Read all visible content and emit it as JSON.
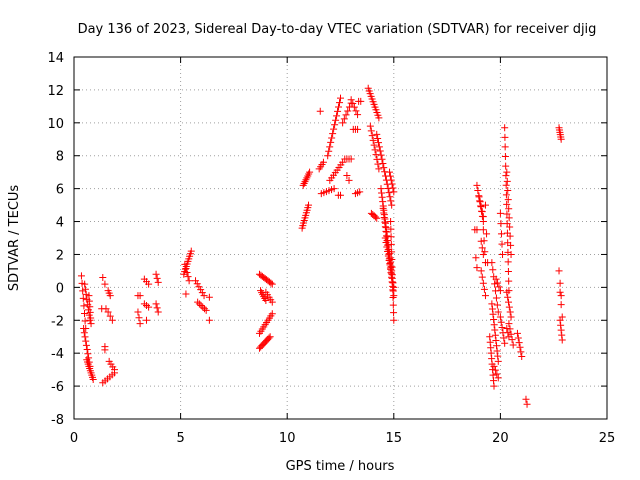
{
  "chart_data": {
    "type": "scatter",
    "title": "Day 136 of 2023, Sidereal Day-to-day VTEC variation (SDTVAR) for receiver djig",
    "xlabel": "GPS time / hours",
    "ylabel": "SDTVAR / TECUs",
    "xlim": [
      0,
      25
    ],
    "ylim": [
      -8,
      14
    ],
    "xticks": [
      0,
      5,
      10,
      15,
      20,
      25
    ],
    "yticks": [
      -8,
      -6,
      -4,
      -2,
      0,
      2,
      4,
      6,
      8,
      10,
      12,
      14
    ],
    "grid": true,
    "marker": "plus",
    "color": "#ff0000",
    "segments": [
      {
        "t0": 0.35,
        "t1": 0.55,
        "v0": 0.7,
        "v1": -2.5,
        "n": 8
      },
      {
        "t0": 0.45,
        "t1": 0.75,
        "v0": -2.5,
        "v1": -4.8,
        "n": 10
      },
      {
        "t0": 0.6,
        "t1": 0.9,
        "v0": -4.4,
        "v1": -5.6,
        "n": 10
      },
      {
        "t0": 0.5,
        "t1": 0.75,
        "v0": 0.2,
        "v1": -2.0,
        "n": 8
      },
      {
        "t0": 0.7,
        "t1": 0.8,
        "v0": -0.5,
        "v1": -2.2,
        "n": 6
      },
      {
        "t0": 1.35,
        "t1": 1.45,
        "v0": 0.6,
        "v1": 0.2,
        "n": 2
      },
      {
        "t0": 1.3,
        "t1": 1.5,
        "v0": -1.3,
        "v1": -1.3,
        "n": 2
      },
      {
        "t0": 1.45,
        "t1": 1.45,
        "v0": -3.6,
        "v1": -3.8,
        "n": 2
      },
      {
        "t0": 1.35,
        "t1": 1.9,
        "v0": -5.8,
        "v1": -5.2,
        "n": 6
      },
      {
        "t0": 1.65,
        "t1": 1.9,
        "v0": -4.5,
        "v1": -5.0,
        "n": 4
      },
      {
        "t0": 1.6,
        "t1": 1.7,
        "v0": -0.2,
        "v1": -0.5,
        "n": 3
      },
      {
        "t0": 1.6,
        "t1": 1.8,
        "v0": -1.5,
        "v1": -2.0,
        "n": 3
      },
      {
        "t0": 3.0,
        "t1": 3.1,
        "v0": -0.5,
        "v1": -0.5,
        "n": 2
      },
      {
        "t0": 3.0,
        "t1": 3.1,
        "v0": -1.5,
        "v1": -2.2,
        "n": 3
      },
      {
        "t0": 3.3,
        "t1": 3.5,
        "v0": 0.5,
        "v1": 0.2,
        "n": 3
      },
      {
        "t0": 3.3,
        "t1": 3.5,
        "v0": -1.0,
        "v1": -1.2,
        "n": 3
      },
      {
        "t0": 3.4,
        "t1": 3.4,
        "v0": -2.0,
        "v1": -2.0,
        "n": 1
      },
      {
        "t0": 3.85,
        "t1": 3.95,
        "v0": 0.8,
        "v1": 0.3,
        "n": 3
      },
      {
        "t0": 3.85,
        "t1": 3.95,
        "v0": -1.0,
        "v1": -1.5,
        "n": 3
      },
      {
        "t0": 5.15,
        "t1": 5.5,
        "v0": 0.8,
        "v1": 2.2,
        "n": 10
      },
      {
        "t0": 5.2,
        "t1": 5.4,
        "v0": 1.4,
        "v1": 0.4,
        "n": 5
      },
      {
        "t0": 5.25,
        "t1": 5.25,
        "v0": -0.4,
        "v1": -0.4,
        "n": 1
      },
      {
        "t0": 5.7,
        "t1": 6.1,
        "v0": 0.4,
        "v1": -0.5,
        "n": 6
      },
      {
        "t0": 5.8,
        "t1": 6.2,
        "v0": -0.9,
        "v1": -1.4,
        "n": 6
      },
      {
        "t0": 6.35,
        "t1": 6.45,
        "v0": -0.6,
        "v1": -0.6,
        "n": 1
      },
      {
        "t0": 6.35,
        "t1": 6.45,
        "v0": -2.0,
        "v1": -2.0,
        "n": 1
      },
      {
        "t0": 8.7,
        "t1": 9.3,
        "v0": 0.8,
        "v1": 0.2,
        "n": 10
      },
      {
        "t0": 8.75,
        "t1": 9.0,
        "v0": -0.2,
        "v1": -0.8,
        "n": 6
      },
      {
        "t0": 9.0,
        "t1": 9.3,
        "v0": -0.3,
        "v1": -0.9,
        "n": 5
      },
      {
        "t0": 8.7,
        "t1": 9.3,
        "v0": -2.8,
        "v1": -1.6,
        "n": 10
      },
      {
        "t0": 8.7,
        "t1": 9.2,
        "v0": -3.7,
        "v1": -3.0,
        "n": 10
      },
      {
        "t0": 10.7,
        "t1": 11.0,
        "v0": 3.6,
        "v1": 5.0,
        "n": 10
      },
      {
        "t0": 10.75,
        "t1": 11.05,
        "v0": 6.2,
        "v1": 7.0,
        "n": 8
      },
      {
        "t0": 11.55,
        "t1": 11.55,
        "v0": 10.7,
        "v1": 10.7,
        "n": 1
      },
      {
        "t0": 11.5,
        "t1": 11.7,
        "v0": 7.2,
        "v1": 7.6,
        "n": 4
      },
      {
        "t0": 11.6,
        "t1": 12.2,
        "v0": 5.7,
        "v1": 6.0,
        "n": 6
      },
      {
        "t0": 11.9,
        "t1": 12.5,
        "v0": 8.0,
        "v1": 11.5,
        "n": 14
      },
      {
        "t0": 12.0,
        "t1": 12.6,
        "v0": 6.5,
        "v1": 7.6,
        "n": 8
      },
      {
        "t0": 12.4,
        "t1": 12.5,
        "v0": 5.6,
        "v1": 5.6,
        "n": 2
      },
      {
        "t0": 12.6,
        "t1": 13.0,
        "v0": 10.0,
        "v1": 11.2,
        "n": 6
      },
      {
        "t0": 12.7,
        "t1": 13.0,
        "v0": 7.8,
        "v1": 7.8,
        "n": 4
      },
      {
        "t0": 12.8,
        "t1": 12.9,
        "v0": 6.8,
        "v1": 6.5,
        "n": 2
      },
      {
        "t0": 13.0,
        "t1": 13.3,
        "v0": 11.4,
        "v1": 10.5,
        "n": 5
      },
      {
        "t0": 13.1,
        "t1": 13.3,
        "v0": 9.6,
        "v1": 9.6,
        "n": 3
      },
      {
        "t0": 13.2,
        "t1": 13.4,
        "v0": 5.7,
        "v1": 5.8,
        "n": 3
      },
      {
        "t0": 13.35,
        "t1": 13.45,
        "v0": 11.3,
        "v1": 11.3,
        "n": 2
      },
      {
        "t0": 13.8,
        "t1": 14.3,
        "v0": 12.1,
        "v1": 10.3,
        "n": 12
      },
      {
        "t0": 13.9,
        "t1": 14.3,
        "v0": 9.8,
        "v1": 7.2,
        "n": 10
      },
      {
        "t0": 13.95,
        "t1": 14.2,
        "v0": 4.5,
        "v1": 4.2,
        "n": 5
      },
      {
        "t0": 14.2,
        "t1": 14.9,
        "v0": 9.3,
        "v1": 5.0,
        "n": 18
      },
      {
        "t0": 14.4,
        "t1": 14.9,
        "v0": 6.0,
        "v1": 1.0,
        "n": 20
      },
      {
        "t0": 14.5,
        "t1": 15.0,
        "v0": 4.8,
        "v1": -0.5,
        "n": 20
      },
      {
        "t0": 14.6,
        "t1": 15.0,
        "v0": 3.0,
        "v1": 0.0,
        "n": 12
      },
      {
        "t0": 14.8,
        "t1": 15.0,
        "v0": 7.0,
        "v1": 5.8,
        "n": 6
      },
      {
        "t0": 14.85,
        "t1": 15.0,
        "v0": 4.0,
        "v1": -2.0,
        "n": 14
      },
      {
        "t0": 18.8,
        "t1": 18.9,
        "v0": 3.5,
        "v1": 3.5,
        "n": 2
      },
      {
        "t0": 18.85,
        "t1": 18.9,
        "v0": 1.8,
        "v1": 1.2,
        "n": 2
      },
      {
        "t0": 18.9,
        "t1": 19.2,
        "v0": 6.2,
        "v1": 4.0,
        "n": 8
      },
      {
        "t0": 19.0,
        "t1": 19.2,
        "v0": 5.5,
        "v1": 4.3,
        "n": 5
      },
      {
        "t0": 19.1,
        "t1": 19.2,
        "v0": 2.8,
        "v1": 2.0,
        "n": 3
      },
      {
        "t0": 19.1,
        "t1": 19.3,
        "v0": 1.0,
        "v1": -0.5,
        "n": 5
      },
      {
        "t0": 19.2,
        "t1": 19.3,
        "v0": 3.5,
        "v1": 1.5,
        "n": 4
      },
      {
        "t0": 19.3,
        "t1": 19.4,
        "v0": 5.0,
        "v1": 1.5,
        "n": 3
      },
      {
        "t0": 19.5,
        "t1": 19.7,
        "v0": -3.0,
        "v1": -6.0,
        "n": 10
      },
      {
        "t0": 19.6,
        "t1": 19.9,
        "v0": -1.0,
        "v1": -4.5,
        "n": 12
      },
      {
        "t0": 19.6,
        "t1": 19.9,
        "v0": 1.5,
        "v1": -1.5,
        "n": 8
      },
      {
        "t0": 19.7,
        "t1": 19.9,
        "v0": -4.8,
        "v1": -5.5,
        "n": 4
      },
      {
        "t0": 19.8,
        "t1": 20.0,
        "v0": 0.5,
        "v1": -0.2,
        "n": 4
      },
      {
        "t0": 20.0,
        "t1": 20.1,
        "v0": 4.5,
        "v1": 2.0,
        "n": 5
      },
      {
        "t0": 20.0,
        "t1": 20.2,
        "v0": -1.8,
        "v1": -3.4,
        "n": 6
      },
      {
        "t0": 20.2,
        "t1": 20.4,
        "v0": 9.7,
        "v1": -0.2,
        "n": 18
      },
      {
        "t0": 20.3,
        "t1": 20.5,
        "v0": 7.0,
        "v1": 2.0,
        "n": 10
      },
      {
        "t0": 20.3,
        "t1": 20.4,
        "v0": -2.5,
        "v1": -3.0,
        "n": 3
      },
      {
        "t0": 20.3,
        "t1": 20.5,
        "v0": -0.3,
        "v1": -1.8,
        "n": 6
      },
      {
        "t0": 20.4,
        "t1": 20.6,
        "v0": -2.2,
        "v1": -3.5,
        "n": 5
      },
      {
        "t0": 20.8,
        "t1": 21.0,
        "v0": -2.8,
        "v1": -4.2,
        "n": 6
      },
      {
        "t0": 21.2,
        "t1": 21.25,
        "v0": -6.8,
        "v1": -7.1,
        "n": 2
      },
      {
        "t0": 22.75,
        "t1": 22.85,
        "v0": 9.7,
        "v1": 9.0,
        "n": 6
      },
      {
        "t0": 22.75,
        "t1": 22.85,
        "v0": 1.0,
        "v1": -0.5,
        "n": 3
      },
      {
        "t0": 22.8,
        "t1": 22.9,
        "v0": -0.3,
        "v1": -1.8,
        "n": 3
      },
      {
        "t0": 22.8,
        "t1": 22.9,
        "v0": -2.0,
        "v1": -3.2,
        "n": 5
      }
    ]
  }
}
